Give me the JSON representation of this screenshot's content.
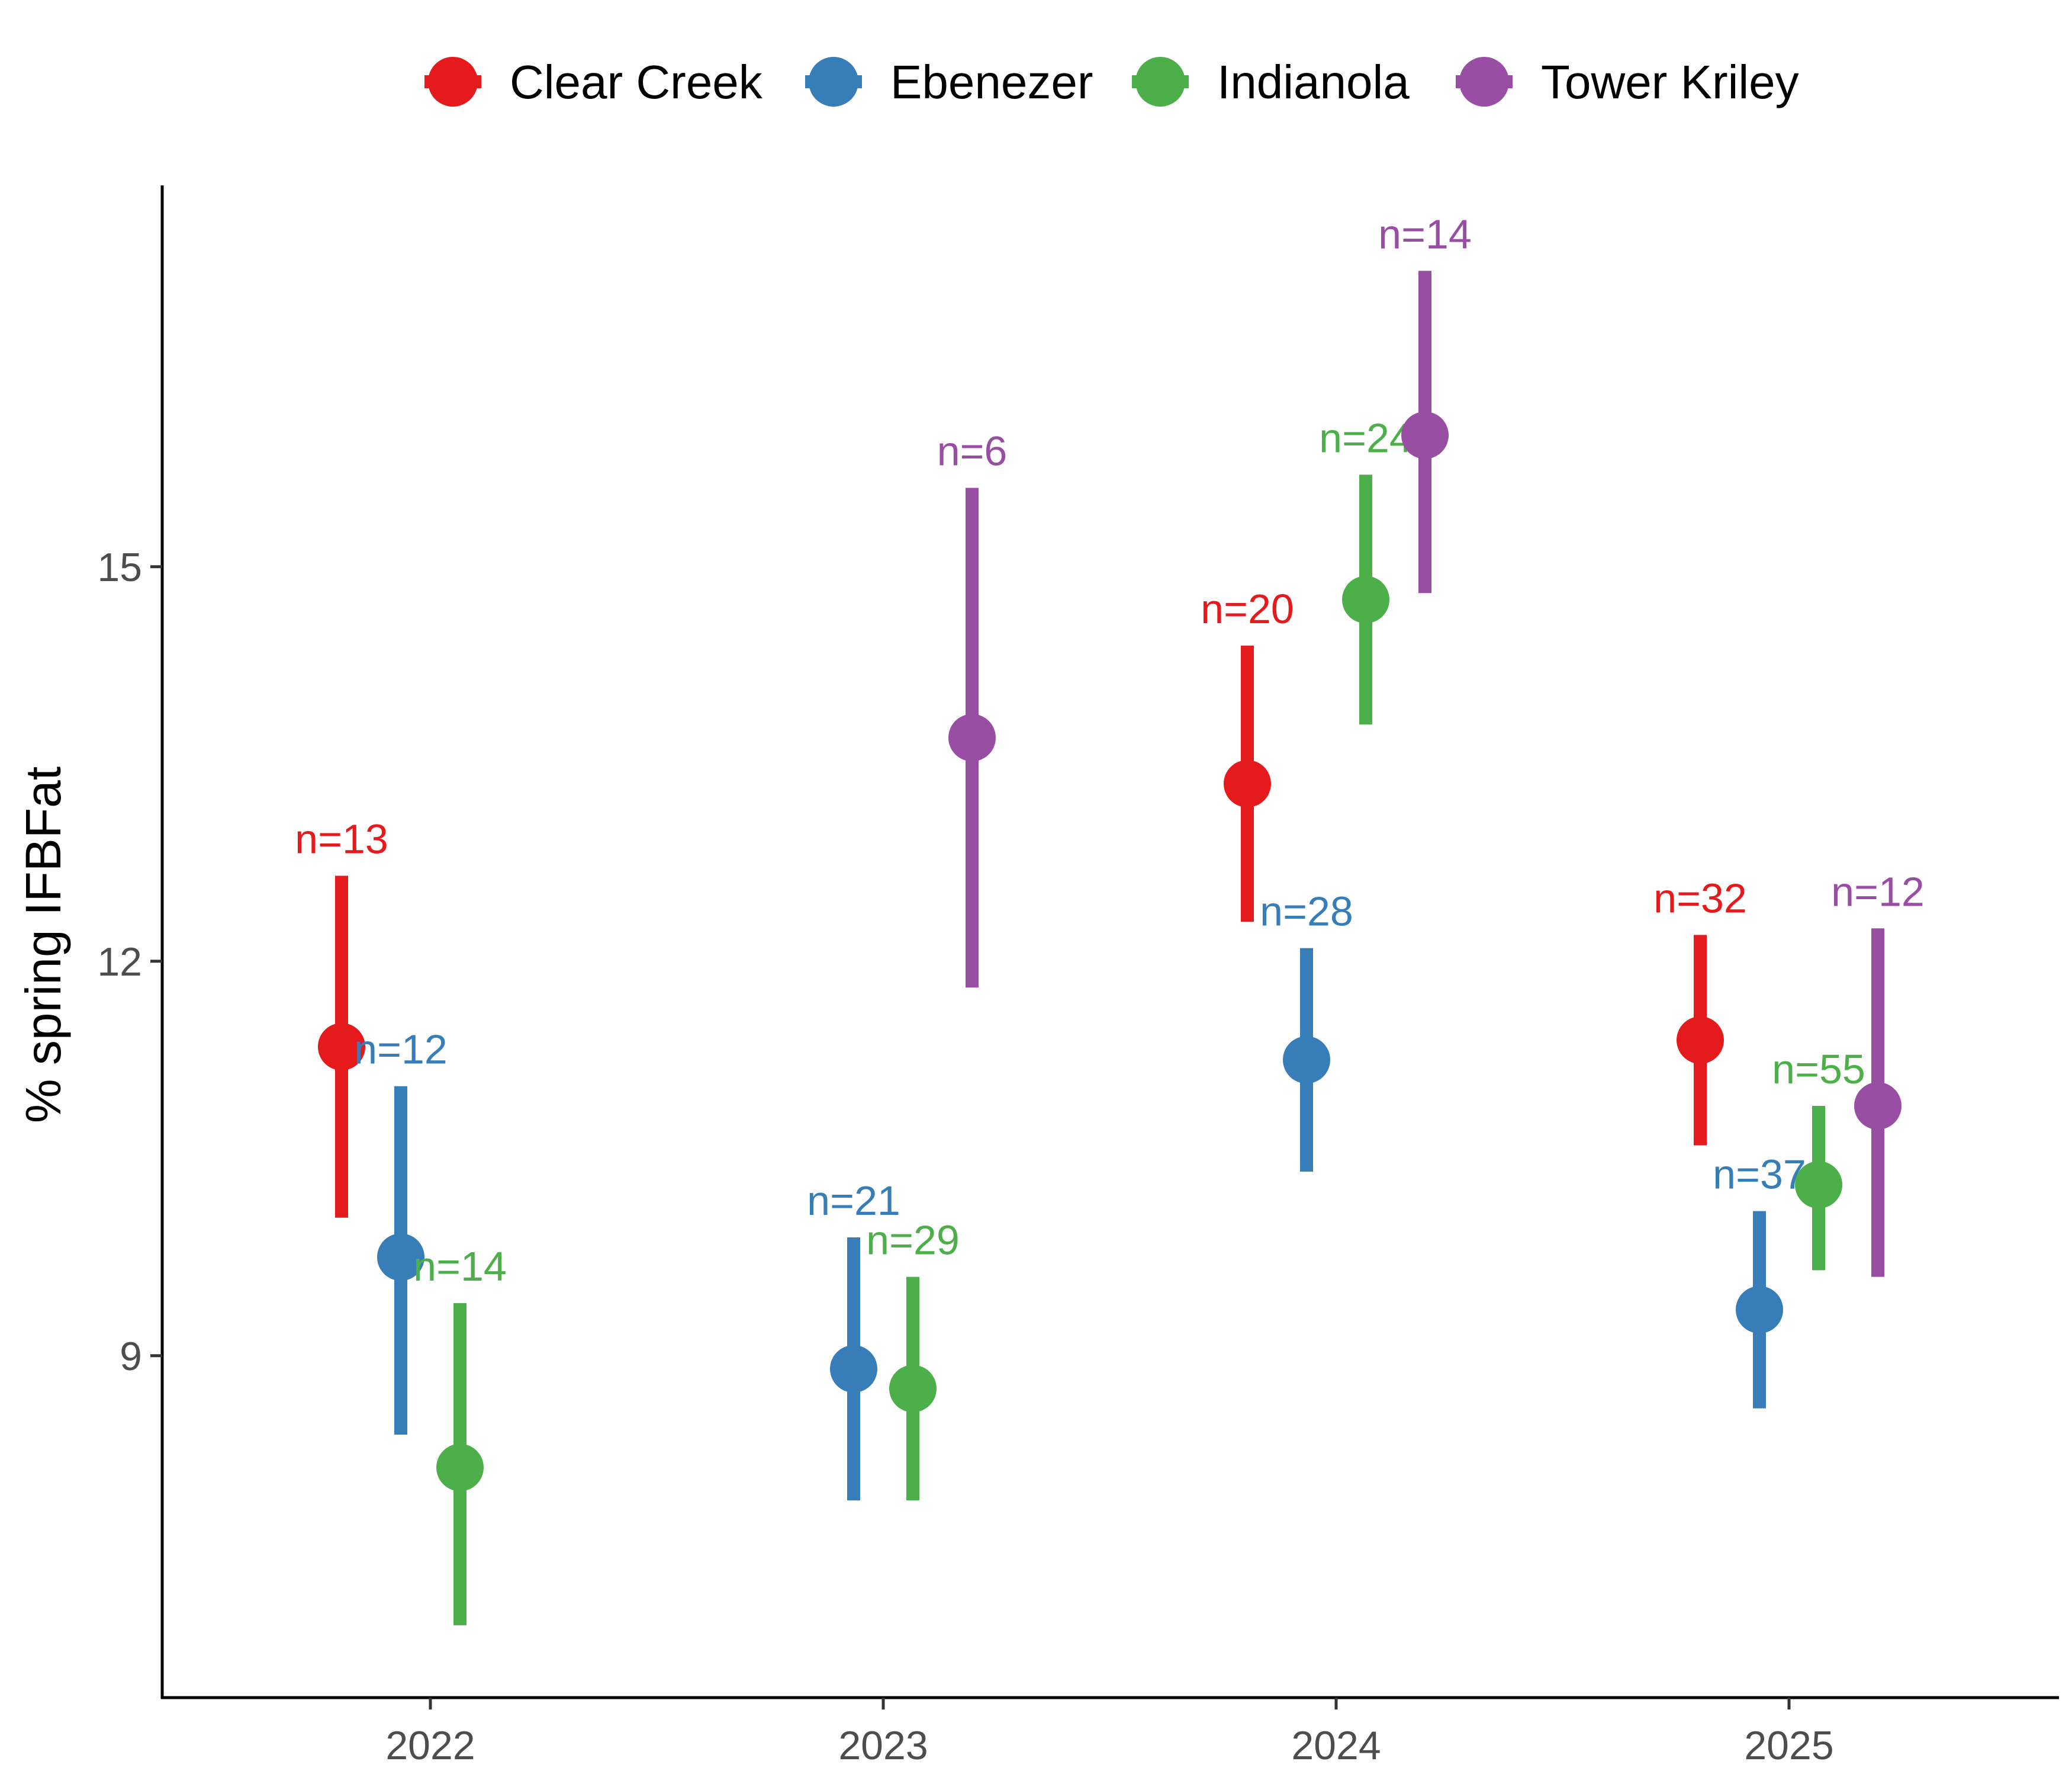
{
  "chart_data": {
    "type": "scatter",
    "subtype": "point-range",
    "title": "",
    "xlabel": "",
    "ylabel": "% spring IFBFat",
    "categories": [
      "2022",
      "2023",
      "2024",
      "2025"
    ],
    "ylim": [
      6.4,
      17.9
    ],
    "yticks": [
      9,
      12,
      15
    ],
    "grid": false,
    "legend": {
      "position": "top",
      "entries": [
        "Clear Creek",
        "Ebenezer",
        "Indianola",
        "Tower Kriley"
      ]
    },
    "series": [
      {
        "name": "Clear Creek",
        "color": "#E41A1C",
        "points": [
          {
            "x": "2022",
            "y": 11.35,
            "low": 10.05,
            "high": 12.65,
            "label": "n=13"
          },
          {
            "x": "2024",
            "y": 13.35,
            "low": 12.3,
            "high": 14.4,
            "label": "n=20"
          },
          {
            "x": "2025",
            "y": 11.4,
            "low": 10.6,
            "high": 12.2,
            "label": "n=32"
          }
        ]
      },
      {
        "name": "Ebenezer",
        "color": "#377EB8",
        "points": [
          {
            "x": "2022",
            "y": 9.75,
            "low": 8.4,
            "high": 11.05,
            "label": "n=12"
          },
          {
            "x": "2023",
            "y": 8.9,
            "low": 7.9,
            "high": 9.9,
            "label": "n=21"
          },
          {
            "x": "2024",
            "y": 11.25,
            "low": 10.4,
            "high": 12.1,
            "label": "n=28"
          },
          {
            "x": "2025",
            "y": 9.35,
            "low": 8.6,
            "high": 10.1,
            "label": "n=37"
          }
        ]
      },
      {
        "name": "Indianola",
        "color": "#4DAF4A",
        "points": [
          {
            "x": "2022",
            "y": 8.15,
            "low": 6.95,
            "high": 9.4,
            "label": "n=14"
          },
          {
            "x": "2023",
            "y": 8.75,
            "low": 7.9,
            "high": 9.6,
            "label": "n=29"
          },
          {
            "x": "2024",
            "y": 14.75,
            "low": 13.8,
            "high": 15.7,
            "label": "n=24"
          },
          {
            "x": "2025",
            "y": 10.3,
            "low": 9.65,
            "high": 10.9,
            "label": "n=55"
          }
        ]
      },
      {
        "name": "Tower Kriley",
        "color": "#984EA3",
        "points": [
          {
            "x": "2023",
            "y": 13.7,
            "low": 11.8,
            "high": 15.6,
            "label": "n=6"
          },
          {
            "x": "2024",
            "y": 16.0,
            "low": 14.8,
            "high": 17.25,
            "label": "n=14"
          },
          {
            "x": "2025",
            "y": 10.9,
            "low": 9.6,
            "high": 12.25,
            "label": "n=12"
          }
        ]
      }
    ]
  }
}
